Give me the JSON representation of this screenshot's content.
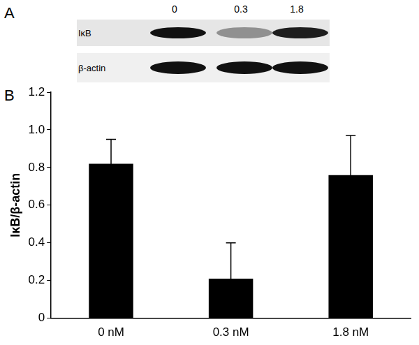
{
  "blot": {
    "panel": "A",
    "lanes": [
      "0",
      "0.3",
      "1.8"
    ],
    "rows": [
      "IκB",
      "β-actin"
    ]
  },
  "chart_panel": "B",
  "chart_data": {
    "type": "bar",
    "y_label": "IκB/β-actin",
    "categories": [
      "0 nM",
      "0.3 nM",
      "1.8 nM"
    ],
    "values": [
      0.82,
      0.21,
      0.76
    ],
    "errors": [
      0.13,
      0.19,
      0.21
    ],
    "color": "#000000",
    "ylim": [
      0,
      1.2
    ],
    "yticks": [
      0,
      0.2,
      0.4,
      0.6,
      0.8,
      {
        "value": 1,
        "label": "1.0"
      },
      1.2
    ],
    "grid": false
  }
}
